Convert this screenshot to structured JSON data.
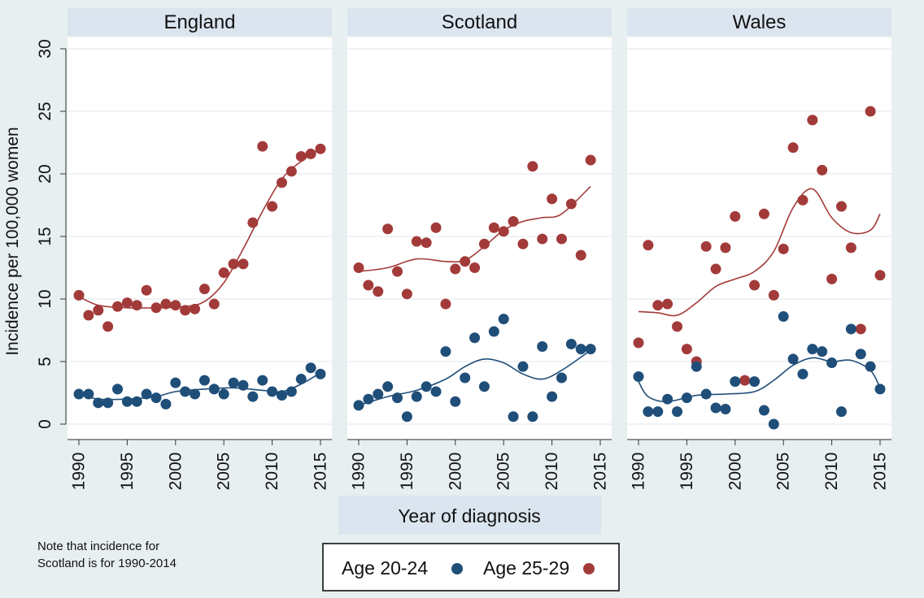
{
  "chart_data": {
    "type": "scatter",
    "ylabel": "Incidence per 100,000 women",
    "xlabel": "Year of diagnosis",
    "ylim": [
      0,
      30
    ],
    "yticks": [
      0,
      5,
      10,
      15,
      20,
      25,
      30
    ],
    "xlim": [
      1990,
      2015
    ],
    "xticks": [
      1990,
      1995,
      2000,
      2005,
      2010,
      2015
    ],
    "grid": true,
    "legend_position": "bottom",
    "colors": {
      "age_20_24": "#1f4e79",
      "age_25_29": "#a33a3a"
    },
    "legend": [
      {
        "key": "age_20_24",
        "label": "Age 20-24"
      },
      {
        "key": "age_25_29",
        "label": "Age 25-29"
      }
    ],
    "panels": [
      {
        "title": "England",
        "age_20_24": {
          "points": [
            [
              1990,
              2.4
            ],
            [
              1991,
              2.4
            ],
            [
              1992,
              1.7
            ],
            [
              1993,
              1.7
            ],
            [
              1994,
              2.8
            ],
            [
              1995,
              1.8
            ],
            [
              1996,
              1.8
            ],
            [
              1997,
              2.4
            ],
            [
              1998,
              2.1
            ],
            [
              1999,
              1.6
            ],
            [
              2000,
              3.3
            ],
            [
              2001,
              2.6
            ],
            [
              2002,
              2.4
            ],
            [
              2003,
              3.5
            ],
            [
              2004,
              2.8
            ],
            [
              2005,
              2.4
            ],
            [
              2006,
              3.3
            ],
            [
              2007,
              3.1
            ],
            [
              2008,
              2.2
            ],
            [
              2009,
              3.5
            ],
            [
              2010,
              2.6
            ],
            [
              2011,
              2.3
            ],
            [
              2012,
              2.6
            ],
            [
              2013,
              3.6
            ],
            [
              2014,
              4.5
            ],
            [
              2015,
              4.0
            ]
          ],
          "fit": [
            [
              1990,
              2.4
            ],
            [
              1992,
              2.0
            ],
            [
              1995,
              2.0
            ],
            [
              1998,
              2.2
            ],
            [
              2000,
              2.6
            ],
            [
              2003,
              2.8
            ],
            [
              2006,
              2.9
            ],
            [
              2009,
              2.7
            ],
            [
              2011,
              2.6
            ],
            [
              2013,
              3.2
            ],
            [
              2015,
              4.1
            ]
          ]
        },
        "age_25_29": {
          "points": [
            [
              1990,
              10.3
            ],
            [
              1991,
              8.7
            ],
            [
              1992,
              9.1
            ],
            [
              1993,
              7.8
            ],
            [
              1994,
              9.4
            ],
            [
              1995,
              9.7
            ],
            [
              1996,
              9.5
            ],
            [
              1997,
              10.7
            ],
            [
              1998,
              9.3
            ],
            [
              1999,
              9.6
            ],
            [
              2000,
              9.5
            ],
            [
              2001,
              9.1
            ],
            [
              2002,
              9.2
            ],
            [
              2003,
              10.8
            ],
            [
              2004,
              9.6
            ],
            [
              2005,
              12.1
            ],
            [
              2006,
              12.8
            ],
            [
              2007,
              12.8
            ],
            [
              2008,
              16.1
            ],
            [
              2009,
              22.2
            ],
            [
              2010,
              17.4
            ],
            [
              2011,
              19.3
            ],
            [
              2012,
              20.2
            ],
            [
              2013,
              21.4
            ],
            [
              2014,
              21.6
            ],
            [
              2015,
              22.0
            ]
          ],
          "fit": [
            [
              1990,
              10.2
            ],
            [
              1992,
              9.5
            ],
            [
              1995,
              9.3
            ],
            [
              1998,
              9.3
            ],
            [
              2001,
              9.4
            ],
            [
              2003,
              9.8
            ],
            [
              2005,
              11.3
            ],
            [
              2007,
              14.0
            ],
            [
              2009,
              17.0
            ],
            [
              2011,
              19.6
            ],
            [
              2013,
              21.0
            ],
            [
              2015,
              22.0
            ]
          ]
        }
      },
      {
        "title": "Scotland",
        "age_20_24": {
          "points": [
            [
              1990,
              1.5
            ],
            [
              1991,
              2.0
            ],
            [
              1992,
              2.4
            ],
            [
              1993,
              3.0
            ],
            [
              1994,
              2.1
            ],
            [
              1995,
              0.6
            ],
            [
              1996,
              2.2
            ],
            [
              1997,
              3.0
            ],
            [
              1998,
              2.6
            ],
            [
              1999,
              5.8
            ],
            [
              2000,
              1.8
            ],
            [
              2001,
              3.7
            ],
            [
              2002,
              6.9
            ],
            [
              2003,
              3.0
            ],
            [
              2004,
              7.4
            ],
            [
              2005,
              8.4
            ],
            [
              2006,
              0.6
            ],
            [
              2007,
              4.6
            ],
            [
              2008,
              0.6
            ],
            [
              2009,
              6.2
            ],
            [
              2010,
              2.2
            ],
            [
              2011,
              3.7
            ],
            [
              2012,
              6.4
            ],
            [
              2013,
              6.0
            ],
            [
              2014,
              6.0
            ]
          ],
          "fit": [
            [
              1990,
              1.5
            ],
            [
              1993,
              2.2
            ],
            [
              1996,
              2.7
            ],
            [
              1999,
              3.6
            ],
            [
              2001,
              4.6
            ],
            [
              2003,
              5.2
            ],
            [
              2005,
              4.9
            ],
            [
              2007,
              4.0
            ],
            [
              2009,
              3.6
            ],
            [
              2011,
              4.3
            ],
            [
              2014,
              5.9
            ]
          ]
        },
        "age_25_29": {
          "points": [
            [
              1990,
              12.5
            ],
            [
              1991,
              11.1
            ],
            [
              1992,
              10.6
            ],
            [
              1993,
              15.6
            ],
            [
              1994,
              12.2
            ],
            [
              1995,
              10.4
            ],
            [
              1996,
              14.6
            ],
            [
              1997,
              14.5
            ],
            [
              1998,
              15.7
            ],
            [
              1999,
              9.6
            ],
            [
              2000,
              12.4
            ],
            [
              2001,
              13.0
            ],
            [
              2002,
              12.5
            ],
            [
              2003,
              14.4
            ],
            [
              2004,
              15.7
            ],
            [
              2005,
              15.4
            ],
            [
              2006,
              16.2
            ],
            [
              2007,
              14.4
            ],
            [
              2008,
              20.6
            ],
            [
              2009,
              14.8
            ],
            [
              2010,
              18.0
            ],
            [
              2011,
              14.8
            ],
            [
              2012,
              17.6
            ],
            [
              2013,
              13.5
            ],
            [
              2014,
              21.1
            ]
          ],
          "fit": [
            [
              1990,
              12.2
            ],
            [
              1993,
              12.5
            ],
            [
              1996,
              13.2
            ],
            [
              1999,
              13.0
            ],
            [
              2001,
              13.1
            ],
            [
              2003,
              14.2
            ],
            [
              2005,
              15.5
            ],
            [
              2007,
              16.2
            ],
            [
              2009,
              16.5
            ],
            [
              2011,
              16.8
            ],
            [
              2014,
              19.0
            ]
          ]
        }
      },
      {
        "title": "Wales",
        "age_20_24": {
          "points": [
            [
              1990,
              3.8
            ],
            [
              1991,
              1.0
            ],
            [
              1992,
              1.0
            ],
            [
              1993,
              2.0
            ],
            [
              1994,
              1.0
            ],
            [
              1995,
              2.1
            ],
            [
              1996,
              4.6
            ],
            [
              1997,
              2.4
            ],
            [
              1998,
              1.3
            ],
            [
              1999,
              1.2
            ],
            [
              2000,
              3.4
            ],
            [
              2002,
              3.4
            ],
            [
              2003,
              1.1
            ],
            [
              2004,
              0.0
            ],
            [
              2005,
              8.6
            ],
            [
              2006,
              5.2
            ],
            [
              2007,
              4.0
            ],
            [
              2008,
              6.0
            ],
            [
              2009,
              5.8
            ],
            [
              2010,
              4.9
            ],
            [
              2011,
              1.0
            ],
            [
              2012,
              7.6
            ],
            [
              2013,
              5.6
            ],
            [
              2014,
              4.6
            ],
            [
              2015,
              2.8
            ]
          ],
          "fit": [
            [
              1990,
              3.4
            ],
            [
              1991,
              2.2
            ],
            [
              1993,
              1.8
            ],
            [
              1996,
              2.3
            ],
            [
              1999,
              2.4
            ],
            [
              2002,
              2.6
            ],
            [
              2004,
              3.5
            ],
            [
              2006,
              4.7
            ],
            [
              2008,
              5.3
            ],
            [
              2010,
              5.0
            ],
            [
              2012,
              5.1
            ],
            [
              2014,
              4.3
            ],
            [
              2015,
              2.9
            ]
          ]
        },
        "age_25_29": {
          "points": [
            [
              1990,
              6.5
            ],
            [
              1991,
              14.3
            ],
            [
              1992,
              9.5
            ],
            [
              1993,
              9.6
            ],
            [
              1994,
              7.8
            ],
            [
              1995,
              6.0
            ],
            [
              1996,
              5.0
            ],
            [
              1997,
              14.2
            ],
            [
              1998,
              12.4
            ],
            [
              1999,
              14.1
            ],
            [
              2000,
              16.6
            ],
            [
              2001,
              3.5
            ],
            [
              2002,
              11.1
            ],
            [
              2003,
              16.8
            ],
            [
              2004,
              10.3
            ],
            [
              2005,
              14.0
            ],
            [
              2006,
              22.1
            ],
            [
              2007,
              17.9
            ],
            [
              2008,
              24.3
            ],
            [
              2009,
              20.3
            ],
            [
              2010,
              11.6
            ],
            [
              2011,
              17.4
            ],
            [
              2012,
              14.1
            ],
            [
              2013,
              7.6
            ],
            [
              2014,
              25.0
            ],
            [
              2015,
              11.9
            ]
          ],
          "fit": [
            [
              1990,
              9.0
            ],
            [
              1992,
              8.9
            ],
            [
              1994,
              8.7
            ],
            [
              1996,
              9.7
            ],
            [
              1998,
              11.0
            ],
            [
              2000,
              11.6
            ],
            [
              2002,
              12.2
            ],
            [
              2004,
              13.8
            ],
            [
              2006,
              17.3
            ],
            [
              2008,
              18.8
            ],
            [
              2010,
              16.5
            ],
            [
              2012,
              15.3
            ],
            [
              2014,
              15.5
            ],
            [
              2015,
              16.8
            ]
          ]
        }
      }
    ]
  },
  "note": {
    "line1": "Note that incidence for",
    "line2": "Scotland is for 1990-2014"
  }
}
